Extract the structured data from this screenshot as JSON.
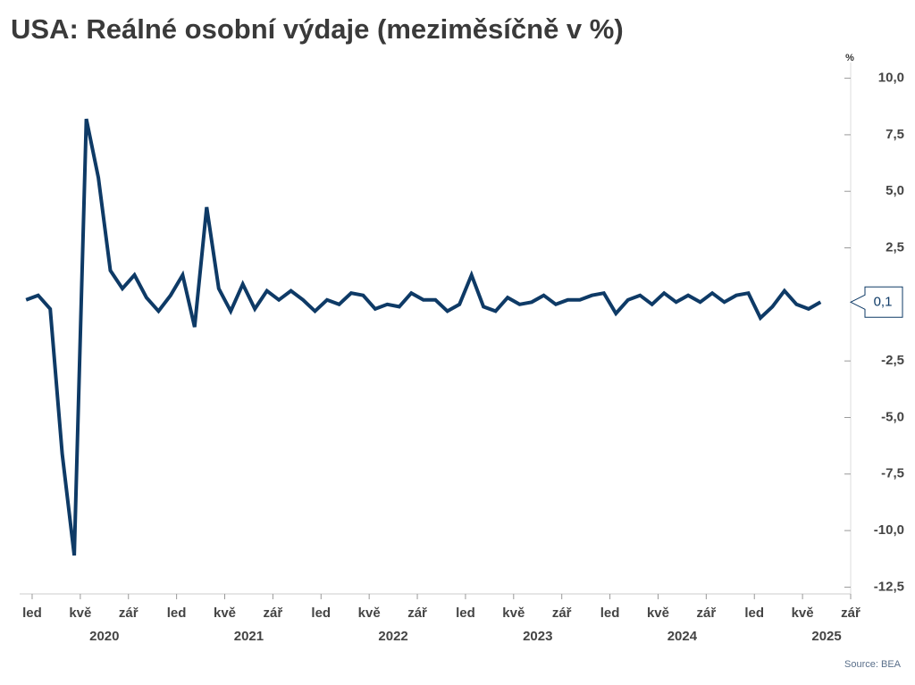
{
  "chart_data": {
    "type": "line",
    "title": "USA: Reálné osobní výdaje (meziměsíčně v %)",
    "y_unit": "%",
    "source": "Source: BEA",
    "categories": [
      null,
      "led",
      null,
      null,
      null,
      "kvě",
      null,
      null,
      null,
      "zář",
      null,
      null,
      null,
      "led",
      null,
      null,
      null,
      "kvě",
      null,
      null,
      null,
      "zář",
      null,
      null,
      null,
      "led",
      null,
      null,
      null,
      "kvě",
      null,
      null,
      null,
      "zář",
      null,
      null,
      null,
      "led",
      null,
      null,
      null,
      "kvě",
      null,
      null,
      null,
      "zář",
      null,
      null,
      null,
      "led",
      null,
      null,
      null,
      "kvě",
      null,
      null,
      null,
      "zář",
      null,
      null,
      null,
      "led",
      null,
      null,
      null,
      "kvě",
      null,
      null,
      null,
      "zář"
    ],
    "years": [
      "2020",
      "2021",
      "2022",
      "2023",
      "2024",
      "2025"
    ],
    "series": [
      {
        "color": "#0e3a66",
        "values": [
          0.2,
          0.4,
          -0.2,
          -6.6,
          -11.1,
          8.2,
          5.6,
          1.5,
          0.7,
          1.3,
          0.3,
          -0.3,
          0.4,
          1.3,
          -1.0,
          4.3,
          0.7,
          -0.3,
          0.9,
          -0.2,
          0.6,
          0.2,
          0.6,
          0.2,
          -0.3,
          0.2,
          0.0,
          0.5,
          0.4,
          -0.2,
          0.0,
          -0.1,
          0.5,
          0.2,
          0.2,
          -0.3,
          0.0,
          1.3,
          -0.1,
          -0.3,
          0.3,
          0.0,
          0.1,
          0.4,
          0.0,
          0.2,
          0.2,
          0.4,
          0.5,
          -0.4,
          0.2,
          0.4,
          0.0,
          0.5,
          0.1,
          0.4,
          0.1,
          0.5,
          0.1,
          0.4,
          0.5,
          -0.6,
          -0.1,
          0.6,
          0.0,
          -0.2,
          0.1,
          null,
          null,
          null
        ],
        "value_labels": [
          null,
          null,
          null,
          null,
          null,
          null,
          null,
          null,
          null,
          null,
          null,
          null,
          null,
          null,
          null,
          null,
          null,
          null,
          null,
          null,
          null,
          null,
          null,
          null,
          null,
          null,
          null,
          null,
          null,
          null,
          null,
          null,
          null,
          null,
          null,
          null,
          null,
          null,
          null,
          null,
          null,
          null,
          null,
          null,
          null,
          null,
          null,
          null,
          null,
          null,
          null,
          null,
          null,
          null,
          null,
          null,
          null,
          null,
          null,
          null,
          null,
          null,
          null,
          null,
          null,
          null,
          "0,1",
          null,
          null,
          null
        ]
      }
    ],
    "ylim": [
      -12.8,
      10.3
    ],
    "yticks": [
      {
        "value": 10,
        "label": "10,0"
      },
      {
        "value": 7.5,
        "label": "7,5"
      },
      {
        "value": 5,
        "label": "5,0"
      },
      {
        "value": 2.5,
        "label": "2,5"
      },
      {
        "value": -2.5,
        "label": "-2,5"
      },
      {
        "value": -5,
        "label": "-5,0"
      },
      {
        "value": -7.5,
        "label": "-7,5"
      },
      {
        "value": -10,
        "label": "-10,0"
      },
      {
        "value": -12.5,
        "label": "-12,5"
      }
    ]
  }
}
